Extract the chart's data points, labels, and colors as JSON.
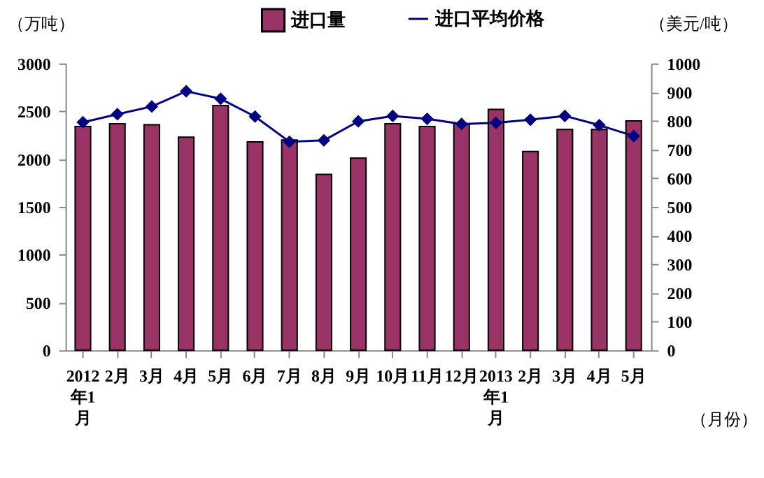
{
  "chart_data": {
    "type": "bar",
    "categories": [
      "2012年1月",
      "2月",
      "3月",
      "4月",
      "5月",
      "6月",
      "7月",
      "8月",
      "9月",
      "10月",
      "11月",
      "12月",
      "2013年1月",
      "2月",
      "3月",
      "4月",
      "5月"
    ],
    "series": [
      {
        "name": "进口量",
        "color": "#993366",
        "values": [
          2340,
          2370,
          2360,
          2230,
          2560,
          2180,
          2200,
          1840,
          2010,
          2370,
          2340,
          2370,
          2520,
          2080,
          2310,
          2310,
          2400
        ]
      },
      {
        "name": "进口平均价格",
        "type": "line",
        "axis": "y2",
        "color": "#000080",
        "marker": "diamond",
        "values": [
          795,
          823,
          850,
          903,
          877,
          815,
          727,
          732,
          798,
          817,
          807,
          789,
          793,
          804,
          817,
          785,
          747
        ]
      }
    ],
    "ylabel": "（万吨）",
    "y2label": "（美元/吨）",
    "xlabel": "（月份）",
    "ylim": [
      0,
      3000
    ],
    "yticks": [
      0,
      500,
      1000,
      1500,
      2000,
      2500,
      3000
    ],
    "y2lim": [
      0,
      1000
    ],
    "y2ticks": [
      0,
      100,
      200,
      300,
      400,
      500,
      600,
      700,
      800,
      900,
      1000
    ],
    "grid": false,
    "legend": "top"
  }
}
